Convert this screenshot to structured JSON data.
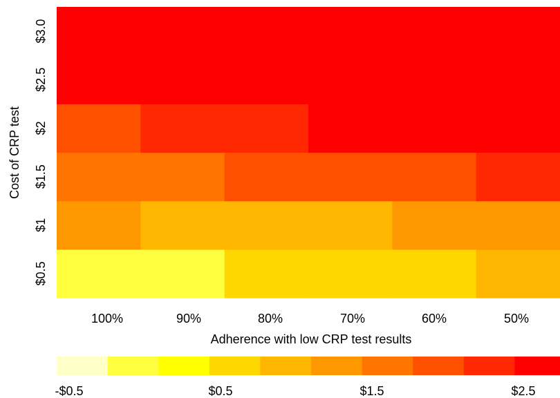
{
  "chart_data": {
    "type": "heatmap",
    "xlabel": "Adherence with low CRP test results",
    "ylabel": "Cost of CRP test",
    "x_categories": [
      "100%",
      "90%",
      "80%",
      "70%",
      "60%",
      "50%"
    ],
    "y_categories": [
      "$0.5",
      "$1",
      "$1.5",
      "$2",
      "$2.5",
      "$3.0"
    ],
    "columns": [
      {
        "label": "100%",
        "values": [
          -0.5,
          0.5,
          0.75,
          1.0,
          1.75,
          2.0
        ]
      },
      {
        "label": "90%",
        "values": [
          -0.5,
          0.25,
          0.75,
          1.25,
          1.75,
          2.25
        ]
      },
      {
        "label": "80%",
        "values": [
          0.0,
          0.25,
          1.0,
          1.25,
          2.0,
          2.25
        ]
      },
      {
        "label": "70%",
        "values": [
          0.0,
          0.25,
          1.0,
          1.5,
          2.0,
          2.5
        ]
      },
      {
        "label": "60%",
        "values": [
          0.0,
          0.5,
          1.0,
          1.5,
          2.0,
          2.5
        ]
      },
      {
        "label": "50%",
        "values": [
          0.25,
          0.5,
          1.25,
          1.5,
          2.25,
          2.5
        ]
      }
    ],
    "colorbar": {
      "breaks": [
        -0.75,
        -0.5,
        -0.25,
        0.0,
        0.25,
        0.5,
        0.75,
        1.0,
        1.25,
        1.5,
        1.75
      ],
      "colors": [
        "#FFFFC8",
        "#FFFF40",
        "#FFFF00",
        "#FFD700",
        "#FFB600",
        "#FF9700",
        "#FF7500",
        "#FF5000",
        "#FF2800",
        "#FF0000"
      ],
      "tick_labels": [
        "-$0.5",
        "$0.5",
        "$1.5",
        "$2.5"
      ],
      "range": [
        -0.75,
        2.75
      ]
    },
    "legend_placement": "bottom",
    "grid": false
  }
}
